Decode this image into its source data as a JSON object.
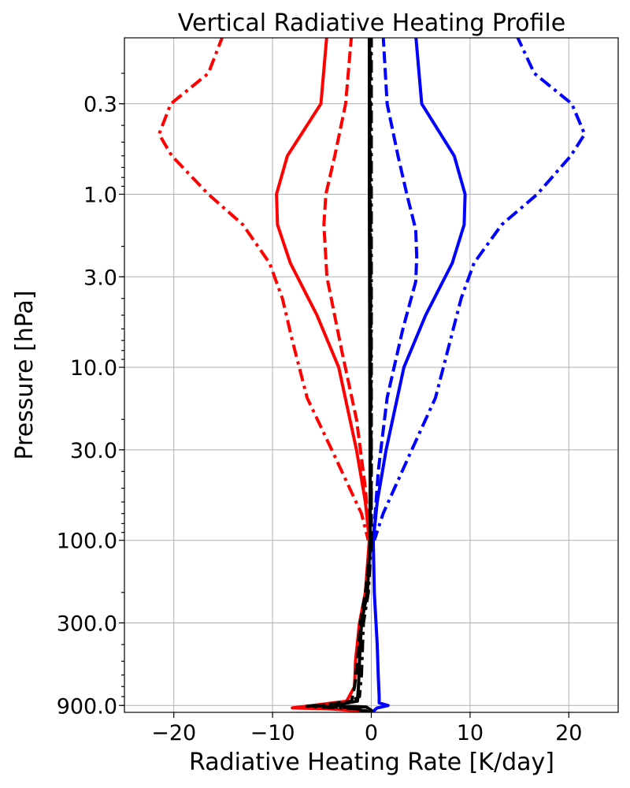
{
  "chart_data": {
    "type": "line",
    "title": "Vertical Radiative Heating Profile",
    "xlabel": "Radiative Heating Rate [K/day]",
    "ylabel": "Pressure [hPa]",
    "xlim": [
      -25,
      25
    ],
    "ylim": [
      1000,
      0.1
    ],
    "yscale": "log",
    "y_inverted": true,
    "grid": true,
    "x_ticks": [
      -20,
      -10,
      0,
      10,
      20
    ],
    "x_tick_labels": [
      "−20",
      "−10",
      "0",
      "10",
      "20"
    ],
    "y_ticks": [
      0.3,
      1.0,
      3.0,
      10.0,
      30.0,
      100.0,
      300.0,
      900.0
    ],
    "y_tick_labels": [
      "0.3",
      "1.0",
      "3.0",
      "10.0",
      "30.0",
      "100.0",
      "300.0",
      "900.0"
    ],
    "series": [
      {
        "color": "#ff0000",
        "style": "solid",
        "points": [
          [
            -4.5,
            0.12
          ],
          [
            -5.1,
            0.3
          ],
          [
            -8.5,
            0.6
          ],
          [
            -9.6,
            1.0
          ],
          [
            -9.5,
            1.5
          ],
          [
            -8.2,
            2.5
          ],
          [
            -5.5,
            5
          ],
          [
            -3.3,
            10
          ],
          [
            -1.5,
            30
          ],
          [
            -0.6,
            60
          ],
          [
            -0.2,
            100
          ],
          [
            -0.6,
            200
          ],
          [
            -1.2,
            300
          ],
          [
            -1.6,
            500
          ],
          [
            -1.7,
            700
          ],
          [
            -2.5,
            850
          ],
          [
            -6.0,
            900
          ],
          [
            -8.0,
            930
          ],
          [
            -4.5,
            940
          ],
          [
            -2.0,
            960
          ],
          [
            0,
            990
          ]
        ]
      },
      {
        "color": "#ff0000",
        "style": "dashed",
        "points": [
          [
            -2.0,
            0.12
          ],
          [
            -2.6,
            0.3
          ],
          [
            -3.7,
            0.6
          ],
          [
            -4.6,
            1.0
          ],
          [
            -4.8,
            1.5
          ],
          [
            -4.5,
            3
          ],
          [
            -3.0,
            8
          ],
          [
            -1.5,
            20
          ],
          [
            -0.6,
            50
          ],
          [
            -0.2,
            100
          ]
        ]
      },
      {
        "color": "#ff0000",
        "style": "dash-dot",
        "points": [
          [
            -15,
            0.12
          ],
          [
            -16.5,
            0.2
          ],
          [
            -20.3,
            0.3
          ],
          [
            -21.5,
            0.45
          ],
          [
            -20.2,
            0.6
          ],
          [
            -16.5,
            1.0
          ],
          [
            -13,
            1.5
          ],
          [
            -10.3,
            2.5
          ],
          [
            -9,
            4
          ],
          [
            -8,
            7
          ],
          [
            -6.5,
            15
          ],
          [
            -4,
            30
          ],
          [
            -1,
            70
          ],
          [
            -0.3,
            100
          ]
        ]
      },
      {
        "color": "#0000ff",
        "style": "solid",
        "points": [
          [
            4.5,
            0.12
          ],
          [
            5.1,
            0.3
          ],
          [
            8.4,
            0.6
          ],
          [
            9.5,
            1.0
          ],
          [
            9.4,
            1.5
          ],
          [
            8.2,
            2.5
          ],
          [
            5.5,
            5
          ],
          [
            3.3,
            10
          ],
          [
            1.5,
            30
          ],
          [
            0.6,
            60
          ],
          [
            0.2,
            100
          ],
          [
            0.3,
            200
          ],
          [
            0.6,
            400
          ],
          [
            0.7,
            600
          ],
          [
            0.8,
            800
          ],
          [
            0.8,
            870
          ],
          [
            1.7,
            900
          ],
          [
            0.6,
            930
          ],
          [
            0.3,
            960
          ],
          [
            0.1,
            990
          ]
        ]
      },
      {
        "color": "#0000ff",
        "style": "dashed",
        "points": [
          [
            1.2,
            0.12
          ],
          [
            1.6,
            0.3
          ],
          [
            2.7,
            0.6
          ],
          [
            3.6,
            1.0
          ],
          [
            4.5,
            1.6
          ],
          [
            4.6,
            2.3
          ],
          [
            4.5,
            3.2
          ],
          [
            3.2,
            6
          ],
          [
            1.6,
            15
          ],
          [
            0.7,
            40
          ],
          [
            0.2,
            100
          ]
        ]
      },
      {
        "color": "#0000ff",
        "style": "dash-dot",
        "points": [
          [
            14.7,
            0.12
          ],
          [
            16.5,
            0.2
          ],
          [
            20.3,
            0.3
          ],
          [
            21.6,
            0.45
          ],
          [
            20.2,
            0.6
          ],
          [
            16.8,
            1.0
          ],
          [
            13.2,
            1.5
          ],
          [
            10.4,
            2.5
          ],
          [
            9.1,
            4
          ],
          [
            8.0,
            7
          ],
          [
            6.5,
            15
          ],
          [
            4.1,
            30
          ],
          [
            1.2,
            70
          ],
          [
            0.3,
            100
          ]
        ]
      },
      {
        "color": "#000000",
        "style": "solid",
        "points": [
          [
            -0.2,
            0.12
          ],
          [
            -0.2,
            1
          ],
          [
            -0.15,
            10
          ],
          [
            -0.1,
            100
          ],
          [
            -0.4,
            200
          ],
          [
            -1.0,
            300
          ],
          [
            -1.2,
            500
          ],
          [
            -1.3,
            700
          ],
          [
            -1.4,
            850
          ],
          [
            -4.0,
            900
          ],
          [
            -0.5,
            920
          ],
          [
            0,
            960
          ],
          [
            -0.2,
            1000
          ]
        ]
      },
      {
        "color": "#000000",
        "style": "dashed",
        "points": [
          [
            -0.1,
            0.12
          ],
          [
            -0.1,
            1
          ],
          [
            -0.05,
            10
          ],
          [
            0,
            100
          ],
          [
            -0.6,
            200
          ],
          [
            -1.1,
            300
          ],
          [
            -1.4,
            500
          ],
          [
            -1.7,
            700
          ],
          [
            -2.0,
            850
          ],
          [
            -5.5,
            905
          ],
          [
            -2.0,
            930
          ],
          [
            0,
            990
          ]
        ]
      },
      {
        "color": "#000000",
        "style": "dash-dot",
        "points": [
          [
            0,
            0.12
          ],
          [
            0,
            1
          ],
          [
            0,
            10
          ],
          [
            0,
            100
          ],
          [
            -0.3,
            200
          ],
          [
            -0.8,
            300
          ],
          [
            -1.0,
            600
          ],
          [
            -1.2,
            800
          ],
          [
            -2.5,
            880
          ],
          [
            -6.5,
            910
          ],
          [
            -1.5,
            940
          ],
          [
            0.2,
            990
          ]
        ]
      }
    ]
  }
}
